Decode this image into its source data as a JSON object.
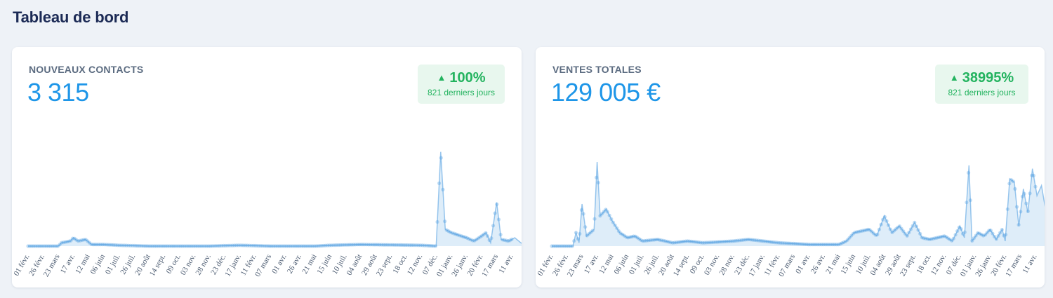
{
  "page": {
    "title": "Tableau de bord"
  },
  "colors": {
    "accent": "#1e96e8",
    "positive": "#23b35f",
    "positive_bg": "#e8f7ee",
    "series": "#4a9be0"
  },
  "cards": [
    {
      "id": "contacts",
      "label": "NOUVEAUX CONTACTS",
      "value": "3 315",
      "badge": {
        "arrow": "▲",
        "pct": "100%",
        "period": "821 derniers jours",
        "icon": "arrow-up-icon"
      }
    },
    {
      "id": "sales",
      "label": "VENTES TOTALES",
      "value": "129 005 €",
      "badge": {
        "arrow": "▲",
        "pct": "38995%",
        "period": "821 derniers jours",
        "icon": "arrow-up-icon"
      }
    }
  ],
  "chart_data": [
    {
      "type": "area",
      "title": "",
      "xlabel": "",
      "ylabel": "",
      "grid": false,
      "legend": "none",
      "x_ticks": [
        "01 févr.",
        "26 févr.",
        "23 mars",
        "17 avr.",
        "12 mai",
        "06 juin",
        "01 juil.",
        "26 juil.",
        "20 août",
        "14 sept.",
        "09 oct.",
        "03 nov.",
        "28 nov.",
        "23 déc.",
        "17 janv.",
        "11 févr.",
        "07 mars",
        "01 avr.",
        "26 avr.",
        "21 mai",
        "15 juin",
        "10 juil.",
        "04 août",
        "29 août",
        "23 sept.",
        "18 oct.",
        "12 nov.",
        "07 déc.",
        "01 janv.",
        "26 janv.",
        "20 févr.",
        "17 mars",
        "11 avr."
      ],
      "ylim": [
        0,
        60
      ],
      "points": [
        [
          0,
          0
        ],
        [
          2,
          0
        ],
        [
          2.2,
          2
        ],
        [
          2.8,
          3
        ],
        [
          3,
          5
        ],
        [
          3.3,
          3
        ],
        [
          3.8,
          4
        ],
        [
          4.2,
          1
        ],
        [
          5,
          1
        ],
        [
          6,
          0.5
        ],
        [
          8,
          0
        ],
        [
          12,
          0
        ],
        [
          14,
          0.5
        ],
        [
          16,
          0
        ],
        [
          19,
          0
        ],
        [
          20,
          0.5
        ],
        [
          22,
          1
        ],
        [
          26,
          0.5
        ],
        [
          27,
          0
        ],
        [
          27.3,
          56
        ],
        [
          27.6,
          10
        ],
        [
          28,
          8
        ],
        [
          29,
          5
        ],
        [
          29.5,
          3
        ],
        [
          30,
          6
        ],
        [
          30.3,
          8
        ],
        [
          30.6,
          2
        ],
        [
          31,
          26
        ],
        [
          31.3,
          4
        ],
        [
          31.8,
          3
        ],
        [
          32.2,
          5
        ],
        [
          32.6,
          2
        ],
        [
          33,
          0
        ]
      ]
    },
    {
      "type": "area",
      "title": "",
      "xlabel": "",
      "ylabel": "",
      "grid": false,
      "legend": "none",
      "x_ticks": [
        "01 févr.",
        "26 févr.",
        "23 mars",
        "17 avr.",
        "12 mai",
        "06 juin",
        "01 juil.",
        "26 juil.",
        "20 août",
        "14 sept.",
        "09 oct.",
        "03 nov.",
        "28 nov.",
        "23 déc.",
        "17 janv.",
        "11 févr.",
        "07 mars",
        "01 avr.",
        "26 avr.",
        "21 mai",
        "15 juin",
        "10 juil.",
        "04 août",
        "29 août",
        "23 sept.",
        "18 oct.",
        "12 nov.",
        "07 déc.",
        "01 janv.",
        "26 janv.",
        "20 févr.",
        "17 mars",
        "11 avr."
      ],
      "ylim": [
        0,
        60
      ],
      "points": [
        [
          0,
          0
        ],
        [
          1.4,
          0
        ],
        [
          1.6,
          8
        ],
        [
          1.8,
          2
        ],
        [
          2,
          25
        ],
        [
          2.3,
          6
        ],
        [
          2.8,
          10
        ],
        [
          3,
          50
        ],
        [
          3.2,
          18
        ],
        [
          3.6,
          22
        ],
        [
          4,
          15
        ],
        [
          4.5,
          8
        ],
        [
          5,
          5
        ],
        [
          5.5,
          6
        ],
        [
          6,
          3
        ],
        [
          7,
          4
        ],
        [
          8,
          2
        ],
        [
          9,
          3
        ],
        [
          10,
          2
        ],
        [
          12,
          3
        ],
        [
          13,
          4
        ],
        [
          14,
          3
        ],
        [
          15,
          2
        ],
        [
          17,
          1
        ],
        [
          19,
          1
        ],
        [
          19.5,
          3
        ],
        [
          20,
          8
        ],
        [
          21,
          10
        ],
        [
          21.5,
          6
        ],
        [
          22,
          18
        ],
        [
          22.5,
          8
        ],
        [
          23,
          12
        ],
        [
          23.5,
          6
        ],
        [
          24,
          14
        ],
        [
          24.5,
          5
        ],
        [
          25,
          4
        ],
        [
          26,
          6
        ],
        [
          26.5,
          3
        ],
        [
          27,
          12
        ],
        [
          27.3,
          5
        ],
        [
          27.6,
          48
        ],
        [
          27.8,
          3
        ],
        [
          28.2,
          8
        ],
        [
          28.6,
          6
        ],
        [
          29,
          10
        ],
        [
          29.4,
          4
        ],
        [
          29.8,
          10
        ],
        [
          30,
          3
        ],
        [
          30.3,
          40
        ],
        [
          30.6,
          38
        ],
        [
          30.9,
          12
        ],
        [
          31.2,
          34
        ],
        [
          31.5,
          20
        ],
        [
          31.8,
          46
        ],
        [
          32.1,
          30
        ],
        [
          32.4,
          36
        ],
        [
          32.7,
          20
        ],
        [
          33,
          0
        ]
      ]
    }
  ]
}
